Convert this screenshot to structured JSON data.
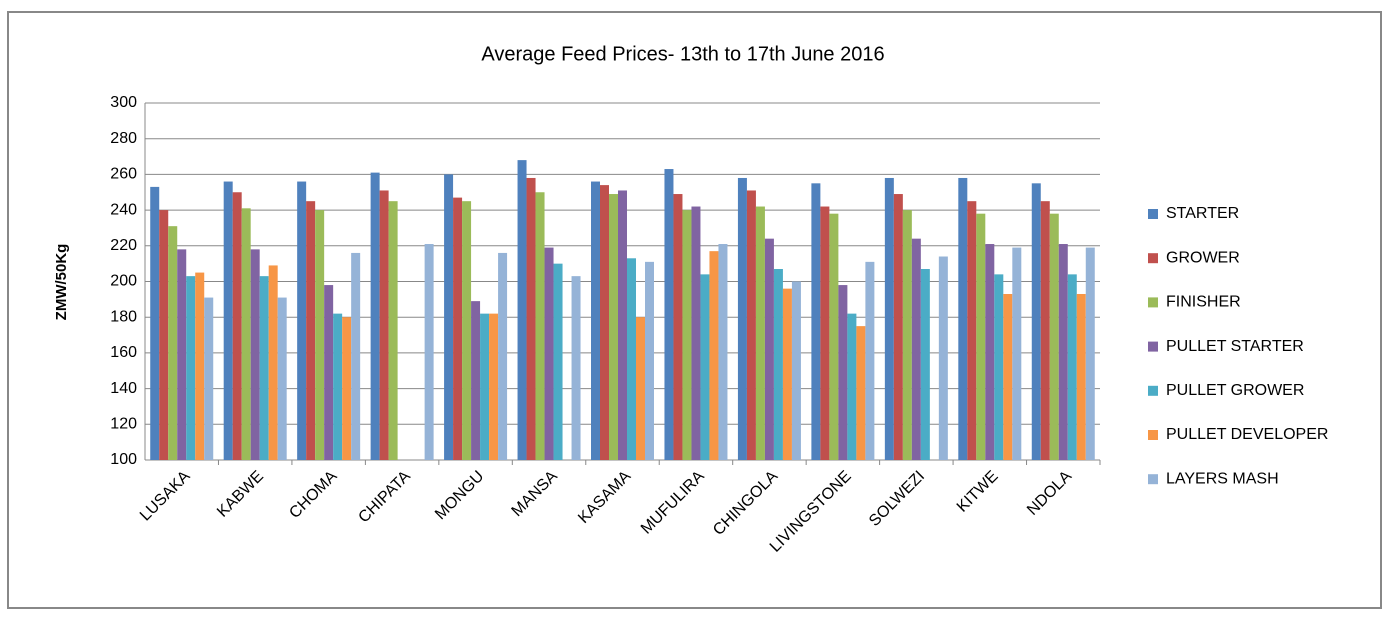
{
  "chart_data": {
    "type": "bar",
    "title": "Average Feed Prices- 13th to 17th June 2016",
    "y_label": "ZMW/50Kg",
    "categories": [
      "LUSAKA",
      "KABWE",
      "CHOMA",
      "CHIPATA",
      "MONGU",
      "MANSA",
      "KASAMA",
      "MUFULIRA",
      "CHINGOLA",
      "LIVINGSTONE",
      "SOLWEZI",
      "KITWE",
      "NDOLA"
    ],
    "series": [
      {
        "name": "STARTER",
        "color": "#4F81BD",
        "values": [
          253,
          256,
          256,
          261,
          260,
          268,
          256,
          263,
          258,
          255,
          258,
          258,
          255
        ]
      },
      {
        "name": "GROWER",
        "color": "#C0504D",
        "values": [
          240,
          250,
          245,
          251,
          247,
          258,
          254,
          249,
          251,
          242,
          249,
          245,
          245
        ]
      },
      {
        "name": "FINISHER",
        "color": "#9BBB59",
        "values": [
          231,
          241,
          240,
          245,
          245,
          250,
          249,
          240,
          242,
          238,
          240,
          238,
          238
        ]
      },
      {
        "name": "PULLET STARTER",
        "color": "#8064A2",
        "values": [
          218,
          218,
          198,
          null,
          189,
          219,
          251,
          242,
          224,
          198,
          224,
          221,
          221
        ]
      },
      {
        "name": "PULLET GROWER",
        "color": "#4BACC6",
        "values": [
          203,
          203,
          182,
          null,
          182,
          210,
          213,
          204,
          207,
          182,
          207,
          204,
          204
        ]
      },
      {
        "name": "PULLET DEVELOPER",
        "color": "#F79646",
        "values": [
          205,
          209,
          180,
          null,
          182,
          null,
          180,
          217,
          196,
          175,
          null,
          193,
          193
        ]
      },
      {
        "name": "LAYERS MASH",
        "color": "#95B3D7",
        "values": [
          191,
          191,
          216,
          221,
          216,
          203,
          211,
          221,
          200,
          211,
          214,
          219,
          219
        ]
      }
    ],
    "ylim": [
      100,
      300
    ],
    "yticks": [
      100,
      120,
      140,
      160,
      180,
      200,
      220,
      240,
      260,
      280,
      300
    ],
    "grid": true,
    "legend": "right"
  }
}
